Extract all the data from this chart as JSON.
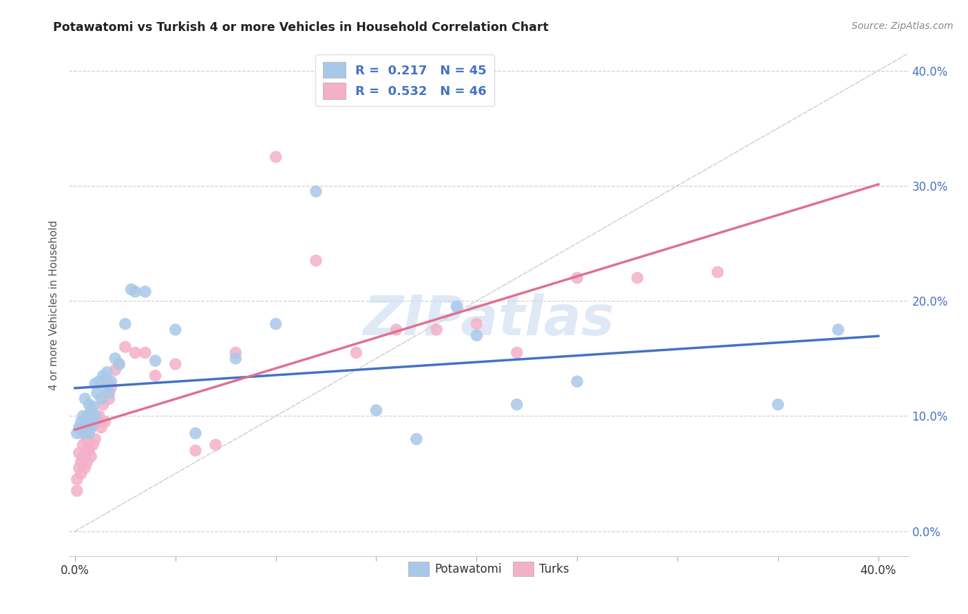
{
  "title": "Potawatomi vs Turkish 4 or more Vehicles in Household Correlation Chart",
  "source": "Source: ZipAtlas.com",
  "ylabel": "4 or more Vehicles in Household",
  "xlim": [
    -0.003,
    0.415
  ],
  "ylim": [
    -0.022,
    0.415
  ],
  "potawatomi_R": 0.217,
  "potawatomi_N": 45,
  "turks_R": 0.532,
  "turks_N": 46,
  "potawatomi_color": "#a8c8e8",
  "turks_color": "#f4b0c8",
  "potawatomi_line_color": "#4472c4",
  "turks_line_color": "#e07090",
  "diagonal_color": "#c8c8c8",
  "background_color": "#ffffff",
  "grid_color": "#cccccc",
  "watermark": "ZIPatlas",
  "legend_label_1": "Potawatomi",
  "legend_label_2": "Turks",
  "pot_x": [
    0.001,
    0.002,
    0.003,
    0.004,
    0.004,
    0.005,
    0.005,
    0.006,
    0.006,
    0.007,
    0.007,
    0.008,
    0.008,
    0.009,
    0.009,
    0.01,
    0.01,
    0.011,
    0.012,
    0.013,
    0.014,
    0.015,
    0.016,
    0.017,
    0.018,
    0.02,
    0.022,
    0.025,
    0.028,
    0.03,
    0.035,
    0.04,
    0.05,
    0.06,
    0.08,
    0.1,
    0.12,
    0.15,
    0.17,
    0.19,
    0.2,
    0.22,
    0.25,
    0.35,
    0.38
  ],
  "pot_y": [
    0.085,
    0.09,
    0.095,
    0.1,
    0.085,
    0.092,
    0.115,
    0.1,
    0.095,
    0.11,
    0.085,
    0.105,
    0.09,
    0.108,
    0.095,
    0.128,
    0.1,
    0.12,
    0.13,
    0.115,
    0.135,
    0.125,
    0.138,
    0.12,
    0.13,
    0.15,
    0.145,
    0.18,
    0.21,
    0.208,
    0.208,
    0.148,
    0.175,
    0.085,
    0.15,
    0.18,
    0.295,
    0.105,
    0.08,
    0.195,
    0.17,
    0.11,
    0.13,
    0.11,
    0.175
  ],
  "turks_x": [
    0.001,
    0.001,
    0.002,
    0.002,
    0.003,
    0.003,
    0.004,
    0.004,
    0.005,
    0.005,
    0.006,
    0.006,
    0.007,
    0.007,
    0.008,
    0.008,
    0.009,
    0.01,
    0.011,
    0.012,
    0.013,
    0.014,
    0.015,
    0.016,
    0.017,
    0.018,
    0.02,
    0.022,
    0.025,
    0.03,
    0.035,
    0.04,
    0.05,
    0.06,
    0.07,
    0.08,
    0.1,
    0.12,
    0.14,
    0.16,
    0.18,
    0.2,
    0.22,
    0.25,
    0.28,
    0.32
  ],
  "turks_y": [
    0.045,
    0.035,
    0.055,
    0.068,
    0.06,
    0.05,
    0.065,
    0.075,
    0.055,
    0.085,
    0.06,
    0.08,
    0.07,
    0.072,
    0.065,
    0.09,
    0.075,
    0.08,
    0.095,
    0.1,
    0.09,
    0.11,
    0.095,
    0.13,
    0.115,
    0.125,
    0.14,
    0.145,
    0.16,
    0.155,
    0.155,
    0.135,
    0.145,
    0.07,
    0.075,
    0.155,
    0.325,
    0.235,
    0.155,
    0.175,
    0.175,
    0.18,
    0.155,
    0.22,
    0.22,
    0.225
  ]
}
